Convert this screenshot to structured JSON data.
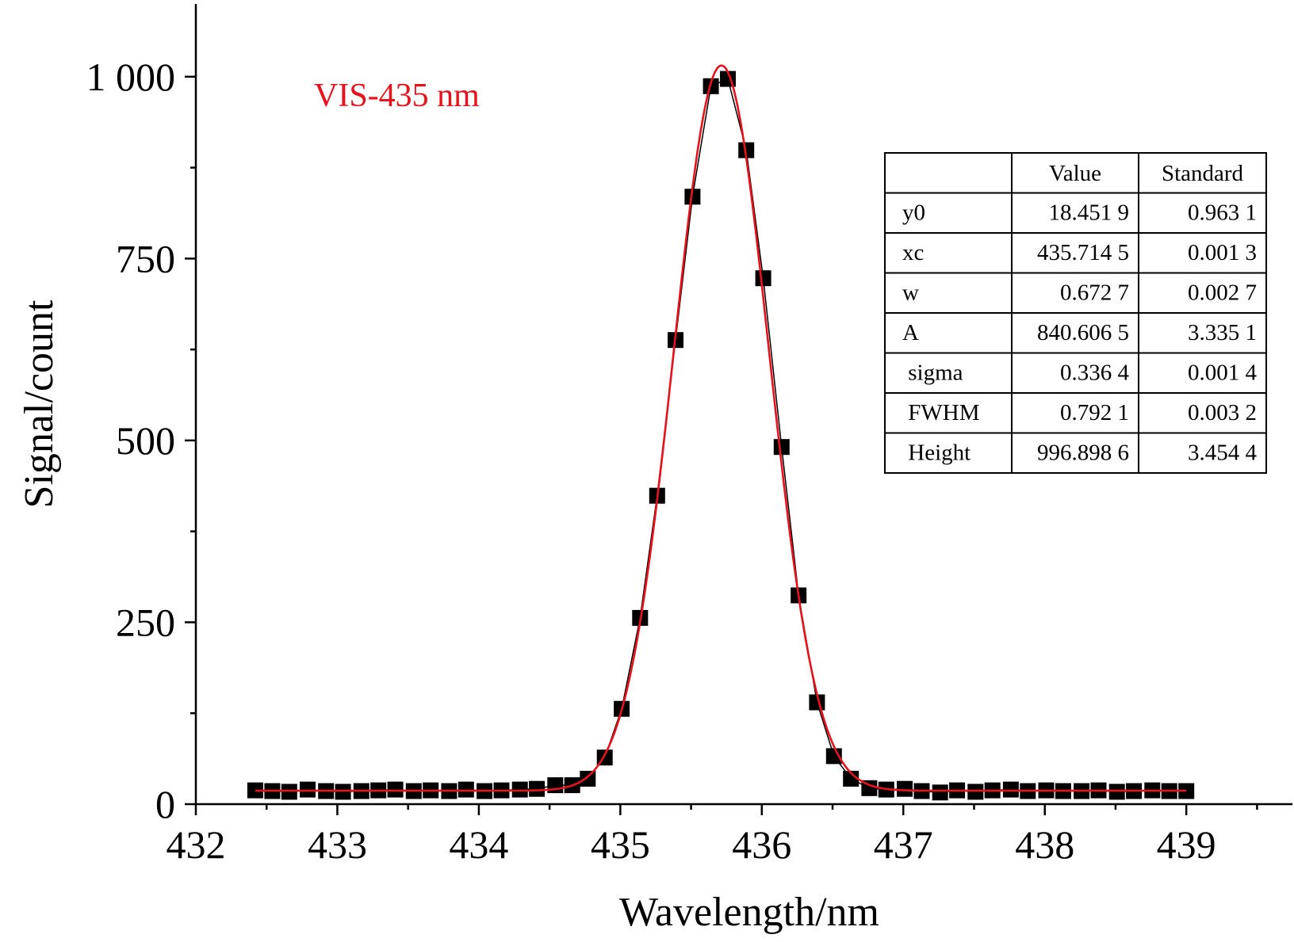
{
  "chart_data": {
    "type": "scatter",
    "xlabel": "Wavelength/nm",
    "ylabel": "Signal/count",
    "xlim": [
      432,
      439.75
    ],
    "ylim": [
      0,
      1100
    ],
    "x_ticks": [
      432,
      433,
      434,
      435,
      436,
      437,
      438,
      439
    ],
    "x_tick_labels": [
      "432",
      "433",
      "434",
      "435",
      "436",
      "437",
      "438",
      "439"
    ],
    "y_ticks": [
      0,
      250,
      500,
      750,
      1000
    ],
    "y_tick_labels": [
      "0",
      "250",
      "500",
      "750",
      "1 000"
    ],
    "grid": false,
    "annotation": "VIS-435 nm",
    "annotation_color": "#e8121c",
    "marker_color": "#000000",
    "fit_color": "#e8121c",
    "series": [
      {
        "marker": "square",
        "x": [
          432.42,
          432.54,
          432.66,
          432.79,
          432.92,
          433.04,
          433.17,
          433.29,
          433.41,
          433.54,
          433.66,
          433.79,
          433.91,
          434.04,
          434.16,
          434.29,
          434.41,
          434.54,
          434.66,
          434.77,
          434.89,
          435.01,
          435.14,
          435.26,
          435.39,
          435.51,
          435.64,
          435.76,
          435.89,
          436.01,
          436.14,
          436.26,
          436.39,
          436.51,
          436.63,
          436.76,
          436.88,
          437.01,
          437.13,
          437.26,
          437.38,
          437.51,
          437.63,
          437.76,
          437.88,
          438.01,
          438.13,
          438.26,
          438.38,
          438.51,
          438.63,
          438.76,
          438.88,
          439.0
        ],
        "y": [
          19,
          18,
          17,
          20,
          18,
          17,
          18,
          19,
          20,
          18,
          19,
          18,
          20,
          18,
          19,
          20,
          21,
          26,
          26,
          35,
          64,
          131,
          256,
          424,
          638,
          835,
          987,
          997,
          899,
          723,
          491,
          287,
          140,
          66,
          35,
          22,
          20,
          21,
          18,
          16,
          19,
          17,
          19,
          20,
          18,
          19,
          18,
          18,
          19,
          17,
          18,
          19,
          18,
          18
        ]
      }
    ],
    "fit": {
      "model": "Gauss",
      "y0": 18.4519,
      "xc": 435.7145,
      "w": 0.6727,
      "A": 840.6065
    },
    "table": {
      "headers": [
        "",
        "Value",
        "Standard"
      ],
      "rows": [
        [
          "y0",
          "18.451 9",
          "0.963 1"
        ],
        [
          "xc",
          "435.714 5",
          "0.001 3"
        ],
        [
          "w",
          "0.672 7",
          "0.002 7"
        ],
        [
          "A",
          "840.606 5",
          "3.335 1"
        ],
        [
          " sigma",
          "0.336 4",
          "0.001 4"
        ],
        [
          " FWHM",
          "0.792 1",
          "0.003 2"
        ],
        [
          " Height",
          "996.898 6",
          "3.454 4"
        ]
      ]
    }
  }
}
